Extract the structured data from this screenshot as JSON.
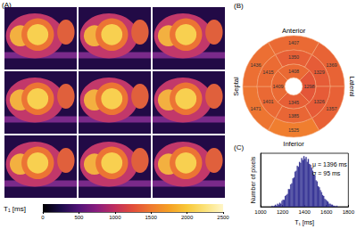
{
  "chart_data": [
    {
      "type": "image",
      "title": "(A)",
      "colorbar": {
        "label": "T₁ [ms]",
        "range": [
          0,
          2500
        ],
        "ticks": [
          0,
          500,
          1000,
          1500,
          2000,
          2500
        ]
      }
    },
    {
      "type": "bullseye",
      "title": "(B)",
      "region_labels": [
        "Anterior",
        "Lateral",
        "Inferior",
        "Septal"
      ],
      "rings": [
        [
          1407,
          1369,
          1357,
          1525,
          1471,
          1436
        ],
        [
          1350,
          1329,
          1326,
          1385,
          1401,
          1415
        ],
        [
          1408,
          1298,
          1345,
          1409
        ]
      ],
      "data_labels": true
    },
    {
      "type": "histogram",
      "title": "(C)",
      "bins": [
        1100,
        1110,
        1120,
        1130,
        1140,
        1150,
        1160,
        1170,
        1180,
        1190,
        1200,
        1210,
        1220,
        1230,
        1240,
        1250,
        1260,
        1270,
        1280,
        1290,
        1300,
        1310,
        1320,
        1330,
        1340,
        1350,
        1360,
        1370,
        1380,
        1390,
        1400,
        1410,
        1420,
        1430,
        1440,
        1450,
        1460,
        1470,
        1480,
        1490,
        1500,
        1510,
        1520,
        1530,
        1540,
        1550,
        1560,
        1570,
        1580,
        1590,
        1600,
        1610,
        1620,
        1630,
        1640,
        1650,
        1660,
        1670,
        1680,
        1690,
        1700
      ],
      "values": [
        1,
        0,
        1,
        2,
        1,
        3,
        2,
        4,
        3,
        6,
        7,
        7,
        11,
        12,
        13,
        18,
        18,
        23,
        24,
        29,
        30,
        36,
        37,
        42,
        41,
        46,
        45,
        50,
        48,
        52,
        49,
        51,
        46,
        49,
        44,
        43,
        40,
        37,
        33,
        32,
        27,
        26,
        21,
        20,
        17,
        15,
        12,
        11,
        8,
        7,
        6,
        5,
        3,
        3,
        2,
        2,
        1,
        1,
        0,
        1
      ],
      "color": "#3b3a98",
      "xlim": [
        1000,
        1800
      ],
      "xticks": [
        1000,
        1200,
        1400,
        1600,
        1800
      ],
      "ylim": [
        0,
        55
      ],
      "yticks": [],
      "x_label": "T₁ [ms]",
      "y_label": "Number of pixels",
      "annotations": [
        "μ = 1396 ms",
        "σ = 95 ms"
      ],
      "tick_labels": "x",
      "grid": false
    }
  ]
}
